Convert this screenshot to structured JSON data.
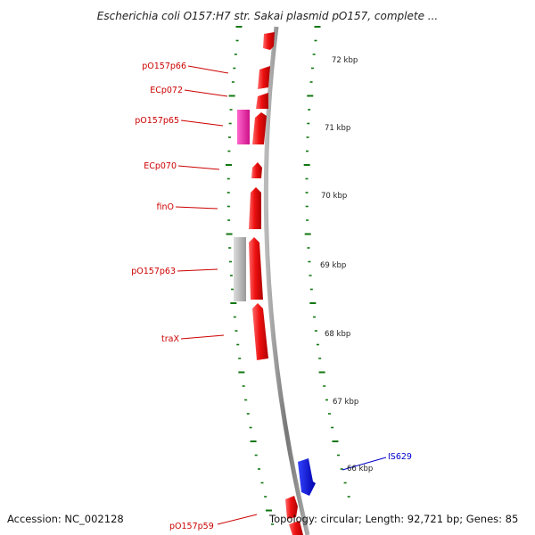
{
  "title": "Escherichia coli O157:H7 str. Sakai plasmid pO157, complete ...",
  "footer": {
    "accession": "Accession: NC_002128",
    "summary": "Topology: circular; Length: 92,721 bp; Genes: 85"
  },
  "scale_labels": [
    "72 kbp",
    "71 kbp",
    "70 kbp",
    "69 kbp",
    "68 kbp",
    "67 kbp",
    "66 kbp"
  ],
  "gene_labels": [
    {
      "text": "pO157p66",
      "color": "#cc0000"
    },
    {
      "text": "ECp072",
      "color": "#cc0000"
    },
    {
      "text": "pO157p65",
      "color": "#cc0000"
    },
    {
      "text": "ECp070",
      "color": "#cc0000"
    },
    {
      "text": "finO",
      "color": "#cc0000"
    },
    {
      "text": "pO157p63",
      "color": "#cc0000"
    },
    {
      "text": "traX",
      "color": "#cc0000"
    },
    {
      "text": "IS629",
      "color": "#0000cc"
    },
    {
      "text": "pO157p59",
      "color": "#cc0000"
    }
  ],
  "colors": {
    "gene": "#ee1111",
    "gene_highlight": "#ff5555",
    "pink_feature": "#ee22aa",
    "gray_feature": "#bbbbbb",
    "mobile_element": "#1111dd",
    "backbone": "#888888",
    "tick": "#117711"
  }
}
